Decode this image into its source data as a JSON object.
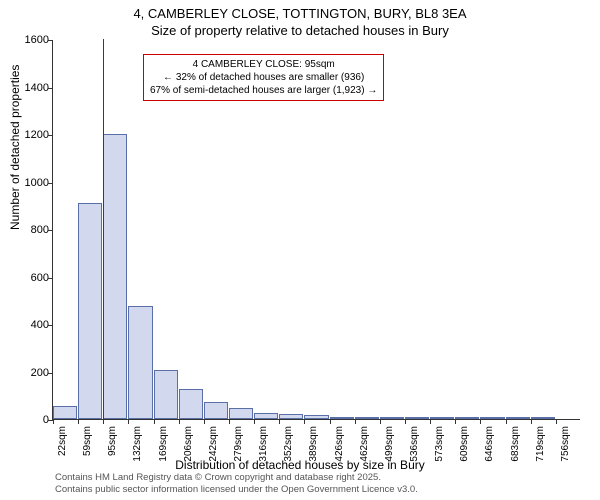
{
  "title_line1": "4, CAMBERLEY CLOSE, TOTTINGTON, BURY, BL8 3EA",
  "title_line2": "Size of property relative to detached houses in Bury",
  "y_label": "Number of detached properties",
  "x_label": "Distribution of detached houses by size in Bury",
  "footer_line1": "Contains HM Land Registry data © Crown copyright and database right 2025.",
  "footer_line2": "Contains public sector information licensed under the Open Government Licence v3.0.",
  "callout": {
    "line1": "4 CAMBERLEY CLOSE: 95sqm",
    "line2": "← 32% of detached houses are smaller (936)",
    "line3": "67% of semi-detached houses are larger (1,923) →"
  },
  "chart": {
    "type": "histogram",
    "ylim": [
      0,
      1600
    ],
    "yticks": [
      0,
      200,
      400,
      600,
      800,
      1000,
      1200,
      1400,
      1600
    ],
    "xticks": [
      "22sqm",
      "59sqm",
      "95sqm",
      "132sqm",
      "169sqm",
      "206sqm",
      "242sqm",
      "279sqm",
      "316sqm",
      "352sqm",
      "389sqm",
      "426sqm",
      "462sqm",
      "499sqm",
      "536sqm",
      "573sqm",
      "609sqm",
      "646sqm",
      "683sqm",
      "719sqm",
      "756sqm"
    ],
    "bar_fill": "#d2d9ee",
    "bar_stroke": "#5a6fa8",
    "values": [
      55,
      910,
      1200,
      475,
      205,
      125,
      70,
      45,
      25,
      20,
      15,
      10,
      8,
      5,
      5,
      5,
      3,
      3,
      2,
      2
    ],
    "reference_line": {
      "x_index": 2,
      "color": "#cc0000"
    },
    "callout_border": "#cc0000",
    "background_color": "#ffffff",
    "font_family": "Arial, sans-serif",
    "title_fontsize": 13,
    "label_fontsize": 12,
    "tick_fontsize": 11,
    "xtick_fontsize": 10
  }
}
